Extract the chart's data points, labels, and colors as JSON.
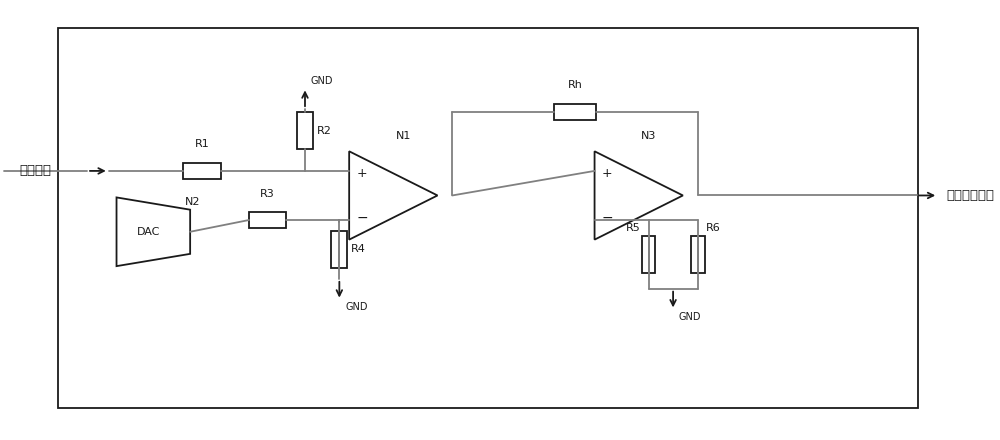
{
  "fig_width": 10.0,
  "fig_height": 4.4,
  "dpi": 100,
  "bg_color": "#ffffff",
  "line_color": "#808080",
  "dark_color": "#1a1a1a",
  "line_width": 1.3,
  "label_left": "模拟信号",
  "label_right": "模拟触发信号",
  "border": [
    0.58,
    0.28,
    8.76,
    3.88
  ]
}
